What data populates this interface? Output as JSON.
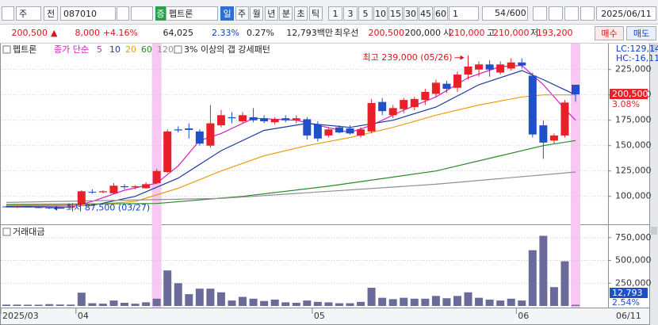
{
  "toolbar": {
    "market": "주",
    "prev": "전",
    "code": "087010",
    "badge": "증",
    "name": "펩트론",
    "periods": [
      "일",
      "주",
      "월",
      "년",
      "분",
      "초",
      "틱"
    ],
    "intervals": [
      "1",
      "3",
      "5",
      "10",
      "15",
      "30",
      "45",
      "60"
    ],
    "interval_select": "1",
    "count": "54",
    "max_count": "/600",
    "date": "2025/06/11"
  },
  "quote": {
    "price": "200,500",
    "arrow": "▲",
    "change": "8,000",
    "change_pct": "+4.16%",
    "volume": "64,025",
    "volume_pct": "2.33%",
    "turnover_pct": "0.27%",
    "amount": "12,793백만",
    "best_label": "최우선",
    "ask": "200,500",
    "bid": "200,000",
    "open_label": "시",
    "open": "210,000",
    "high_label": "고",
    "high": "210,000",
    "low_label": "저",
    "low": "193,200",
    "buy": "매수",
    "sell": "매도"
  },
  "chart_data": [
    {
      "type": "candlestick",
      "title": "펩트론",
      "legend_label": "종가 단순",
      "pattern_label": "3% 이상의 갭 강세패턴",
      "categories": [
        "2025/03",
        null,
        null,
        null,
        null,
        null,
        null,
        "04",
        null,
        null,
        null,
        null,
        null,
        null,
        null,
        null,
        null,
        null,
        null,
        null,
        null,
        null,
        null,
        null,
        null,
        null,
        null,
        null,
        null,
        "05",
        null,
        null,
        null,
        null,
        null,
        null,
        null,
        null,
        null,
        null,
        null,
        null,
        null,
        null,
        null,
        null,
        null,
        null,
        "06",
        null,
        null,
        null,
        null,
        null
      ],
      "open": [
        90000,
        89500,
        90000,
        89300,
        89000,
        88800,
        89000,
        92000,
        104500,
        104000,
        103000,
        110000,
        109000,
        108000,
        113000,
        124000,
        166000,
        167000,
        164000,
        150000,
        170000,
        178000,
        174000,
        178000,
        177000,
        173000,
        177000,
        175000,
        176000,
        171000,
        160000,
        168000,
        167000,
        160000,
        164000,
        193000,
        180000,
        186000,
        188000,
        195000,
        201000,
        211000,
        207000,
        220000,
        225000,
        230000,
        222000,
        226000,
        232000,
        219000,
        170000,
        155000,
        160000,
        210000
      ],
      "high": [
        91000,
        90500,
        90500,
        90000,
        89500,
        89800,
        90500,
        106000,
        107000,
        106000,
        113000,
        112000,
        111000,
        114000,
        127000,
        166000,
        169000,
        172000,
        166000,
        190000,
        185000,
        183000,
        183000,
        187000,
        180000,
        178000,
        180000,
        180000,
        178000,
        174000,
        168000,
        170000,
        170000,
        168000,
        196000,
        197000,
        190000,
        197000,
        198000,
        206000,
        215000,
        214000,
        223000,
        239000,
        233000,
        234000,
        233000,
        236000,
        236000,
        222000,
        175000,
        162000,
        195000,
        210000
      ],
      "low": [
        89000,
        88500,
        89000,
        88500,
        87500,
        88000,
        88500,
        91500,
        102500,
        103000,
        102500,
        107000,
        107000,
        107500,
        112000,
        123000,
        163000,
        157000,
        150000,
        148000,
        168000,
        172000,
        172000,
        173000,
        172000,
        171000,
        173000,
        172000,
        156000,
        154000,
        158000,
        162000,
        161000,
        158000,
        162000,
        180000,
        177000,
        182000,
        185000,
        190000,
        198000,
        202000,
        203000,
        215000,
        218000,
        218000,
        220000,
        224000,
        226000,
        158000,
        137000,
        152000,
        158000,
        193200
      ],
      "close": [
        89500,
        90000,
        89300,
        89000,
        88800,
        89000,
        90000,
        105000,
        104000,
        105000,
        110500,
        109000,
        110000,
        112000,
        125000,
        164000,
        165000,
        165500,
        152000,
        172000,
        180000,
        177000,
        180000,
        175000,
        174000,
        176000,
        175000,
        177000,
        160000,
        157000,
        166000,
        163000,
        162000,
        166000,
        192000,
        184000,
        187000,
        195000,
        196000,
        203000,
        212000,
        206000,
        220000,
        228000,
        230000,
        225000,
        230000,
        232000,
        229000,
        161000,
        153000,
        160000,
        192500,
        200500
      ],
      "up_color": "#e8202a",
      "down_color": "#1f4fc9",
      "lines": [
        {
          "name": "5",
          "color": "#d020c0",
          "x": [
            0,
            6,
            8,
            11,
            14,
            16,
            18,
            20,
            23,
            27,
            29,
            32,
            34,
            37,
            40,
            43,
            46,
            48,
            50,
            52,
            53
          ],
          "values": [
            89500,
            89300,
            95000,
            106000,
            113000,
            130000,
            155000,
            162000,
            177000,
            175000,
            170000,
            163000,
            170000,
            185000,
            198000,
            217000,
            228000,
            229000,
            210000,
            186000,
            175000
          ]
        },
        {
          "name": "10",
          "color": "#1a3aa0",
          "x": [
            0,
            8,
            12,
            16,
            20,
            24,
            28,
            32,
            36,
            40,
            44,
            48,
            50,
            52,
            53
          ],
          "values": [
            90000,
            91000,
            100000,
            118000,
            145000,
            165000,
            172000,
            168000,
            175000,
            188000,
            210000,
            224000,
            215000,
            205000,
            200000
          ]
        },
        {
          "name": "20",
          "color": "#e8a010",
          "x": [
            0,
            7,
            12,
            16,
            20,
            24,
            28,
            32,
            36,
            40,
            44,
            48,
            50,
            53
          ],
          "values": [
            91000,
            91000,
            95000,
            108000,
            125000,
            140000,
            150000,
            158000,
            168000,
            180000,
            190000,
            198000,
            200000,
            200000
          ]
        },
        {
          "name": "60",
          "color": "#2a8a2a",
          "x": [
            0,
            14,
            22,
            30,
            40,
            46,
            50,
            53
          ],
          "values": [
            92000,
            93000,
            100000,
            110000,
            125000,
            140000,
            150000,
            155000
          ]
        },
        {
          "name": "120",
          "color": "#909090",
          "x": [
            0,
            20,
            40,
            53
          ],
          "values": [
            94000,
            98000,
            112000,
            124000
          ]
        }
      ],
      "gap_days": [
        14,
        53
      ],
      "highlight_color": "#f7c8f2",
      "ylim": [
        74000,
        249000
      ],
      "yticks": [
        {
          "value": 100000,
          "label": "100,000"
        },
        {
          "value": 125000,
          "label": "125,000"
        },
        {
          "value": 150000,
          "label": "150,000"
        },
        {
          "value": 175000,
          "label": "175,000"
        },
        {
          "value": 200000,
          "label": "200,000"
        },
        {
          "value": 225000,
          "label": "225,000"
        }
      ],
      "grid": true,
      "max_label": "최고 239,000 (05/26)",
      "min_label": "최저 87,500 (03/27)",
      "last_price_label": "200,500",
      "last_change_label": "3.08%",
      "lc_label": "LC:129,14",
      "hc_label": "HC:-16,11",
      "end_date": "06/11"
    },
    {
      "type": "bar",
      "title": "거래대금",
      "values": [
        15000,
        15000,
        14000,
        14000,
        20000,
        16000,
        15000,
        146000,
        30000,
        25000,
        60000,
        35000,
        25000,
        40000,
        80000,
        390000,
        250000,
        130000,
        190000,
        190000,
        150000,
        60000,
        100000,
        80000,
        55000,
        70000,
        40000,
        35000,
        60000,
        45000,
        40000,
        30000,
        30000,
        45000,
        200000,
        90000,
        75000,
        90000,
        80000,
        80000,
        110000,
        85000,
        110000,
        150000,
        90000,
        70000,
        60000,
        80000,
        60000,
        612000,
        770000,
        207000,
        491000,
        12793
      ],
      "color": "#6b6b9b",
      "ylim": [
        0,
        870000
      ],
      "yticks": [
        {
          "value": 250000,
          "label": "250,000"
        },
        {
          "value": 500000,
          "label": "500,000"
        },
        {
          "value": 750000,
          "label": "750,000"
        }
      ],
      "grid": true,
      "last_value_label": "12,793",
      "last_pct_label": "2.54%"
    }
  ]
}
